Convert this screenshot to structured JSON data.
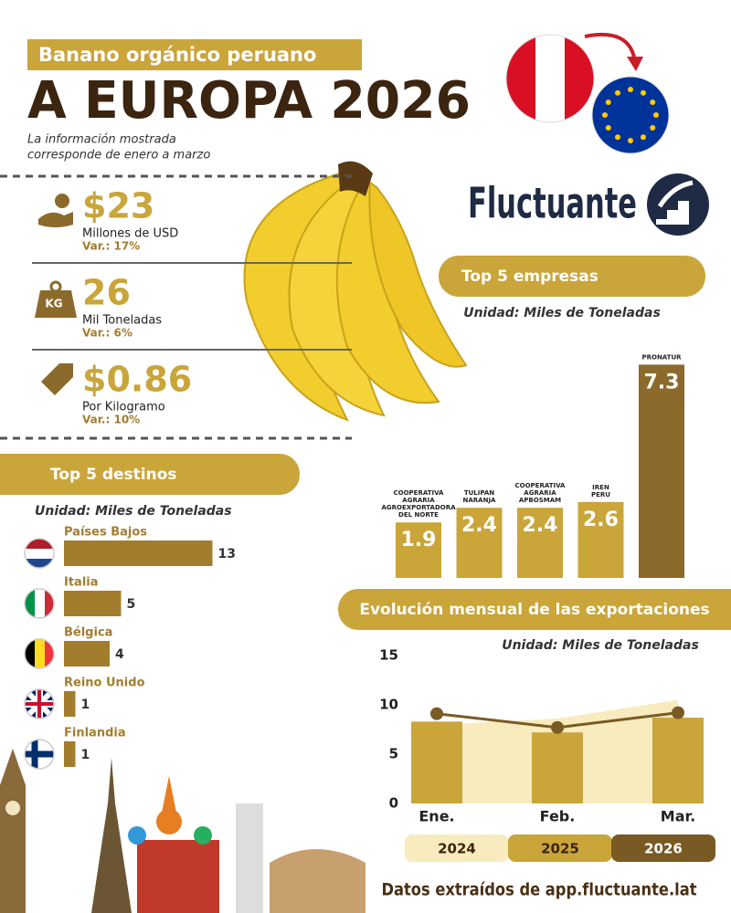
{
  "header": {
    "tag": "Banano orgánico peruano",
    "title": "A EUROPA 2026",
    "note": [
      "La información mostrada",
      "corresponde de enero a marzo"
    ]
  },
  "brand": "Fluctuante",
  "kpis": [
    {
      "value": "$23",
      "unit": "Millones de USD",
      "change": "Var.: 17%"
    },
    {
      "value": "26",
      "unit": "Mil Toneladas",
      "change": "Var.: 6%"
    },
    {
      "value": "$0.86",
      "unit": "Por Kilogramo",
      "change": "Var.: 10%"
    }
  ],
  "chart_data": [
    {
      "type": "bar",
      "title": "Top 5 empresas",
      "subtitle": "Unidad: Miles de Toneladas",
      "categories": [
        [
          "COOPERATIVA",
          "AGRARIA",
          "AGROEXPORTADORA",
          "DEL NORTE"
        ],
        [
          "TULIPAN",
          "NARANJA"
        ],
        [
          "COOPERATIVA",
          "AGRARIA",
          "APBOSMAM"
        ],
        [
          "IREN",
          "PERU"
        ],
        [
          "PRONATUR"
        ]
      ],
      "values": [
        1.9,
        2.4,
        2.4,
        2.6,
        7.3
      ],
      "colors": [
        "#c9a53a",
        "#c9a53a",
        "#c9a53a",
        "#c9a53a",
        "#8c6a2c"
      ]
    },
    {
      "type": "hbar",
      "title": "Top 5 destinos",
      "subtitle": "Unidad: Miles de Toneladas",
      "categories": [
        "Países Bajos",
        "Italia",
        "Bélgica",
        "Reino Unido",
        "Finlandia"
      ],
      "values": [
        13,
        5,
        4,
        1,
        1
      ],
      "color": "#a37d2e"
    },
    {
      "type": "combo",
      "title": "Evolución mensual de las exportaciones",
      "subtitle": "Unidad: Miles de Toneladas",
      "categories": [
        "Ene.",
        "Feb.",
        "Mar."
      ],
      "ylim": [
        0,
        15
      ],
      "yticks": [
        0,
        5,
        10,
        15
      ],
      "series": [
        {
          "name": "2024",
          "type": "area",
          "color": "#f8ebbd",
          "values": [
            8.0,
            8.6,
            10.5
          ]
        },
        {
          "name": "2025",
          "type": "bar",
          "color": "#c9a53a",
          "values": [
            8.3,
            7.2,
            8.7
          ]
        },
        {
          "name": "2026",
          "type": "line",
          "color": "#7a5a24",
          "values": [
            9.1,
            7.7,
            9.2
          ]
        }
      ]
    }
  ],
  "footer": "Datos extraídos de app.fluctuante.lat"
}
